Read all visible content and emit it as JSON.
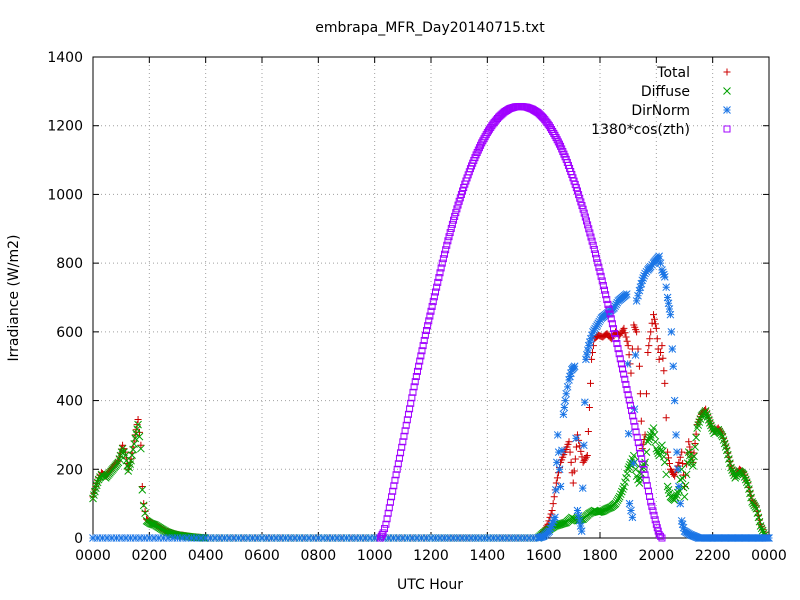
{
  "chart_data": {
    "type": "scatter",
    "title": "embrapa_MFR_Day20140715.txt",
    "xlabel": "UTC Hour",
    "ylabel": "Irradiance (W/m2)",
    "xlim": [
      0,
      24
    ],
    "ylim": [
      0,
      1400
    ],
    "grid": true,
    "legend_position": "top-right",
    "x_ticks": [
      0,
      2,
      4,
      6,
      8,
      10,
      12,
      14,
      16,
      18,
      20,
      22,
      24
    ],
    "x_tick_labels": [
      "0000",
      "0200",
      "0400",
      "0600",
      "0800",
      "1000",
      "1200",
      "1400",
      "1600",
      "1800",
      "2000",
      "2200",
      "0000"
    ],
    "y_ticks": [
      0,
      200,
      400,
      600,
      800,
      1000,
      1200,
      1400
    ],
    "y_tick_labels": [
      "0",
      "200",
      "400",
      "600",
      "800",
      "1000",
      "1200",
      "1400"
    ],
    "series": [
      {
        "name": "Total",
        "marker": "plus",
        "color": "#cc0000",
        "points": [
          [
            0.0,
            120
          ],
          [
            0.1,
            150
          ],
          [
            0.2,
            175
          ],
          [
            0.3,
            190
          ],
          [
            0.45,
            180
          ],
          [
            0.6,
            195
          ],
          [
            0.75,
            210
          ],
          [
            0.9,
            225
          ],
          [
            1.05,
            270
          ],
          [
            1.15,
            250
          ],
          [
            1.25,
            200
          ],
          [
            1.35,
            230
          ],
          [
            1.5,
            300
          ],
          [
            1.6,
            345
          ],
          [
            1.7,
            270
          ],
          [
            1.75,
            150
          ],
          [
            1.8,
            100
          ],
          [
            1.9,
            55
          ],
          [
            2.05,
            45
          ],
          [
            2.2,
            40
          ],
          [
            2.4,
            30
          ],
          [
            2.6,
            20
          ],
          [
            2.8,
            15
          ],
          [
            3.0,
            10
          ],
          [
            3.2,
            8
          ],
          [
            3.4,
            5
          ],
          [
            3.6,
            3
          ],
          [
            3.8,
            2
          ],
          [
            4.0,
            0
          ],
          [
            8.0,
            0
          ],
          [
            12.0,
            0
          ],
          [
            15.8,
            0
          ],
          [
            16.0,
            20
          ],
          [
            16.15,
            40
          ],
          [
            16.3,
            80
          ],
          [
            16.45,
            160
          ],
          [
            16.6,
            220
          ],
          [
            16.75,
            250
          ],
          [
            16.9,
            280
          ],
          [
            17.05,
            160
          ],
          [
            17.2,
            300
          ],
          [
            17.4,
            220
          ],
          [
            17.55,
            240
          ],
          [
            17.7,
            520
          ],
          [
            17.8,
            580
          ],
          [
            17.95,
            590
          ],
          [
            18.1,
            585
          ],
          [
            18.25,
            595
          ],
          [
            18.4,
            580
          ],
          [
            18.55,
            600
          ],
          [
            18.7,
            590
          ],
          [
            18.85,
            610
          ],
          [
            19.0,
            560
          ],
          [
            19.1,
            480
          ],
          [
            19.2,
            620
          ],
          [
            19.3,
            600
          ],
          [
            19.4,
            500
          ],
          [
            19.5,
            260
          ],
          [
            19.6,
            300
          ],
          [
            19.7,
            540
          ],
          [
            19.8,
            600
          ],
          [
            19.9,
            650
          ],
          [
            20.0,
            610
          ],
          [
            20.1,
            520
          ],
          [
            20.2,
            560
          ],
          [
            20.3,
            450
          ],
          [
            20.4,
            250
          ],
          [
            20.5,
            200
          ],
          [
            20.65,
            180
          ],
          [
            20.8,
            220
          ],
          [
            20.9,
            250
          ],
          [
            21.0,
            150
          ],
          [
            21.15,
            280
          ],
          [
            21.3,
            220
          ],
          [
            21.45,
            330
          ],
          [
            21.6,
            360
          ],
          [
            21.75,
            375
          ],
          [
            21.9,
            340
          ],
          [
            22.05,
            310
          ],
          [
            22.2,
            320
          ],
          [
            22.35,
            300
          ],
          [
            22.5,
            260
          ],
          [
            22.65,
            210
          ],
          [
            22.8,
            180
          ],
          [
            22.95,
            200
          ],
          [
            23.1,
            190
          ],
          [
            23.25,
            160
          ],
          [
            23.4,
            110
          ],
          [
            23.55,
            90
          ],
          [
            23.7,
            40
          ],
          [
            23.85,
            10
          ]
        ]
      },
      {
        "name": "Diffuse",
        "marker": "cross",
        "color": "#00a000",
        "points": [
          [
            0.0,
            115
          ],
          [
            0.1,
            145
          ],
          [
            0.2,
            170
          ],
          [
            0.3,
            185
          ],
          [
            0.45,
            175
          ],
          [
            0.6,
            190
          ],
          [
            0.75,
            205
          ],
          [
            0.9,
            220
          ],
          [
            1.05,
            260
          ],
          [
            1.15,
            240
          ],
          [
            1.25,
            195
          ],
          [
            1.35,
            225
          ],
          [
            1.5,
            290
          ],
          [
            1.6,
            330
          ],
          [
            1.7,
            260
          ],
          [
            1.75,
            140
          ],
          [
            1.8,
            95
          ],
          [
            1.9,
            50
          ],
          [
            2.05,
            42
          ],
          [
            2.2,
            38
          ],
          [
            2.4,
            28
          ],
          [
            2.6,
            18
          ],
          [
            2.8,
            12
          ],
          [
            3.0,
            8
          ],
          [
            3.2,
            6
          ],
          [
            3.4,
            4
          ],
          [
            3.6,
            2
          ],
          [
            4.0,
            0
          ],
          [
            8.0,
            0
          ],
          [
            12.0,
            0
          ],
          [
            15.8,
            0
          ],
          [
            16.0,
            15
          ],
          [
            16.2,
            25
          ],
          [
            16.4,
            35
          ],
          [
            16.6,
            40
          ],
          [
            16.8,
            45
          ],
          [
            17.0,
            60
          ],
          [
            17.2,
            50
          ],
          [
            17.4,
            55
          ],
          [
            17.6,
            70
          ],
          [
            17.8,
            80
          ],
          [
            17.95,
            75
          ],
          [
            18.1,
            78
          ],
          [
            18.25,
            85
          ],
          [
            18.4,
            90
          ],
          [
            18.55,
            100
          ],
          [
            18.7,
            120
          ],
          [
            18.85,
            150
          ],
          [
            19.0,
            200
          ],
          [
            19.1,
            220
          ],
          [
            19.2,
            240
          ],
          [
            19.3,
            180
          ],
          [
            19.4,
            160
          ],
          [
            19.5,
            200
          ],
          [
            19.6,
            220
          ],
          [
            19.7,
            280
          ],
          [
            19.8,
            300
          ],
          [
            19.9,
            320
          ],
          [
            20.0,
            260
          ],
          [
            20.1,
            240
          ],
          [
            20.2,
            270
          ],
          [
            20.3,
            220
          ],
          [
            20.4,
            150
          ],
          [
            20.5,
            120
          ],
          [
            20.65,
            110
          ],
          [
            20.8,
            140
          ],
          [
            20.9,
            200
          ],
          [
            21.0,
            120
          ],
          [
            21.15,
            250
          ],
          [
            21.3,
            210
          ],
          [
            21.45,
            320
          ],
          [
            21.6,
            355
          ],
          [
            21.75,
            370
          ],
          [
            21.9,
            335
          ],
          [
            22.05,
            305
          ],
          [
            22.2,
            315
          ],
          [
            22.35,
            295
          ],
          [
            22.5,
            255
          ],
          [
            22.65,
            205
          ],
          [
            22.8,
            175
          ],
          [
            22.95,
            195
          ],
          [
            23.1,
            185
          ],
          [
            23.25,
            155
          ],
          [
            23.4,
            105
          ],
          [
            23.55,
            85
          ],
          [
            23.7,
            35
          ],
          [
            23.85,
            8
          ]
        ]
      },
      {
        "name": "DirNorm",
        "marker": "star",
        "color": "#1a75e6",
        "points": [
          [
            0.0,
            0
          ],
          [
            4.0,
            0
          ],
          [
            8.0,
            0
          ],
          [
            12.0,
            0
          ],
          [
            15.8,
            0
          ],
          [
            16.0,
            5
          ],
          [
            16.2,
            20
          ],
          [
            16.4,
            60
          ],
          [
            16.5,
            300
          ],
          [
            16.6,
            150
          ],
          [
            16.7,
            360
          ],
          [
            16.8,
            420
          ],
          [
            16.9,
            460
          ],
          [
            17.0,
            490
          ],
          [
            17.1,
            500
          ],
          [
            17.2,
            80
          ],
          [
            17.35,
            20
          ],
          [
            17.5,
            520
          ],
          [
            17.6,
            560
          ],
          [
            17.75,
            600
          ],
          [
            17.9,
            620
          ],
          [
            18.05,
            640
          ],
          [
            18.2,
            650
          ],
          [
            18.35,
            660
          ],
          [
            18.5,
            670
          ],
          [
            18.65,
            690
          ],
          [
            18.8,
            700
          ],
          [
            18.95,
            710
          ],
          [
            19.05,
            100
          ],
          [
            19.15,
            60
          ],
          [
            19.3,
            690
          ],
          [
            19.4,
            720
          ],
          [
            19.5,
            750
          ],
          [
            19.6,
            770
          ],
          [
            19.7,
            780
          ],
          [
            19.8,
            790
          ],
          [
            19.9,
            800
          ],
          [
            20.0,
            810
          ],
          [
            20.1,
            820
          ],
          [
            20.2,
            780
          ],
          [
            20.3,
            760
          ],
          [
            20.4,
            700
          ],
          [
            20.5,
            650
          ],
          [
            20.6,
            500
          ],
          [
            20.7,
            300
          ],
          [
            20.8,
            150
          ],
          [
            20.9,
            50
          ],
          [
            21.0,
            20
          ],
          [
            21.2,
            10
          ],
          [
            21.5,
            0
          ],
          [
            22.0,
            0
          ],
          [
            23.0,
            0
          ],
          [
            24.0,
            0
          ]
        ]
      },
      {
        "name": "1380*cos(zth)",
        "marker": "square",
        "color": "#a000ff",
        "points": [
          [
            10.2,
            0
          ],
          [
            10.3,
            15
          ],
          [
            10.4,
            40
          ],
          [
            10.6,
            120
          ],
          [
            10.8,
            200
          ],
          [
            11.0,
            280
          ],
          [
            11.2,
            360
          ],
          [
            11.4,
            440
          ],
          [
            11.6,
            515
          ],
          [
            11.8,
            590
          ],
          [
            12.0,
            660
          ],
          [
            12.2,
            730
          ],
          [
            12.4,
            800
          ],
          [
            12.6,
            865
          ],
          [
            12.8,
            925
          ],
          [
            13.0,
            980
          ],
          [
            13.2,
            1030
          ],
          [
            13.4,
            1075
          ],
          [
            13.6,
            1115
          ],
          [
            13.8,
            1150
          ],
          [
            14.0,
            1180
          ],
          [
            14.2,
            1205
          ],
          [
            14.4,
            1225
          ],
          [
            14.6,
            1240
          ],
          [
            14.8,
            1250
          ],
          [
            15.0,
            1255
          ],
          [
            15.2,
            1256
          ],
          [
            15.4,
            1254
          ],
          [
            15.6,
            1248
          ],
          [
            15.8,
            1238
          ],
          [
            16.0,
            1222
          ],
          [
            16.2,
            1200
          ],
          [
            16.4,
            1172
          ],
          [
            16.6,
            1140
          ],
          [
            16.8,
            1102
          ],
          [
            17.0,
            1058
          ],
          [
            17.2,
            1010
          ],
          [
            17.4,
            957
          ],
          [
            17.6,
            900
          ],
          [
            17.8,
            840
          ],
          [
            18.0,
            775
          ],
          [
            18.2,
            708
          ],
          [
            18.4,
            638
          ],
          [
            18.6,
            566
          ],
          [
            18.8,
            492
          ],
          [
            19.0,
            417
          ],
          [
            19.2,
            340
          ],
          [
            19.4,
            262
          ],
          [
            19.6,
            184
          ],
          [
            19.8,
            105
          ],
          [
            20.0,
            40
          ],
          [
            20.1,
            10
          ],
          [
            20.2,
            0
          ]
        ]
      }
    ]
  }
}
